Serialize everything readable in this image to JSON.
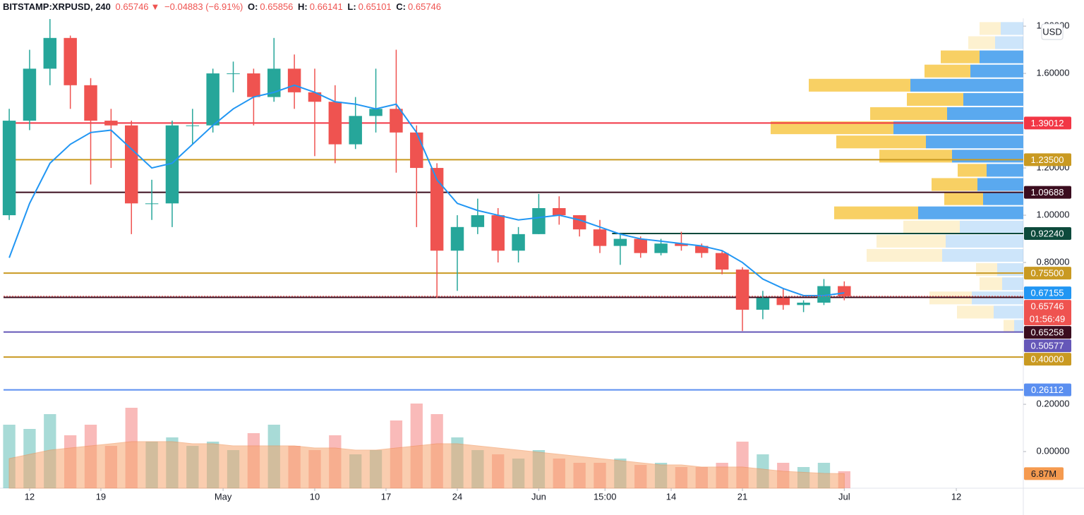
{
  "header": {
    "symbol": "BITSTAMP:XRPUSD, 240",
    "last": "0.65746",
    "arrow": "▼",
    "change": "−0.04883 (−6.91%)",
    "open_label": "O:",
    "open": "0.65856",
    "high_label": "H:",
    "high": "0.66141",
    "low_label": "L:",
    "low": "0.65101",
    "close_label": "C:",
    "close": "0.65746"
  },
  "chart_data": {
    "type": "candlestick",
    "currency": "USD",
    "grid": false,
    "up_color": "#26a69a",
    "down_color": "#ef5350",
    "xlim": [
      -0.28,
      49.79
    ],
    "xticks": [
      {
        "value": 1,
        "label": "12"
      },
      {
        "value": 4.5,
        "label": "19"
      },
      {
        "value": 10.5,
        "label": "May"
      },
      {
        "value": 15,
        "label": "10"
      },
      {
        "value": 18.5,
        "label": "17"
      },
      {
        "value": 22,
        "label": "24"
      },
      {
        "value": 26,
        "label": "Jun"
      },
      {
        "value": 29.25,
        "label": "15:00"
      },
      {
        "value": 32.5,
        "label": "14"
      },
      {
        "value": 36,
        "label": "21"
      },
      {
        "value": 41,
        "label": "Jul"
      },
      {
        "value": 46.5,
        "label": "12"
      }
    ],
    "ylim": [
      -0.155,
      1.833
    ],
    "yticks": [
      {
        "value": 0,
        "label": "0.00000"
      },
      {
        "value": 0.2,
        "label": "0.20000"
      },
      {
        "value": 0.8,
        "label": "0.80000"
      },
      {
        "value": 1,
        "label": "1.00000"
      },
      {
        "value": 1.2,
        "label": "1.20000"
      },
      {
        "value": 1.6,
        "label": "1.60000"
      },
      {
        "value": 1.8,
        "label": "1.80000"
      }
    ],
    "open": [
      1.0,
      1.4,
      1.62,
      1.75,
      1.55,
      1.4,
      1.38,
      1.05,
      1.05,
      1.38,
      1.38,
      1.6,
      1.6,
      1.5,
      1.62,
      1.52,
      1.48,
      1.3,
      1.42,
      1.45,
      1.35,
      1.2,
      0.85,
      0.95,
      1.0,
      0.85,
      0.92,
      1.03,
      1.0,
      0.94,
      0.87,
      0.9,
      0.84,
      0.88,
      0.87,
      0.84,
      0.77,
      0.6,
      0.65,
      0.62,
      0.63,
      0.7
    ],
    "high": [
      1.45,
      1.7,
      1.83,
      1.76,
      1.58,
      1.45,
      1.4,
      1.15,
      1.4,
      1.45,
      1.62,
      1.65,
      1.62,
      1.75,
      1.68,
      1.62,
      1.55,
      1.5,
      1.62,
      1.7,
      1.38,
      1.22,
      1.0,
      1.07,
      1.03,
      0.95,
      1.09,
      1.08,
      1.0,
      0.98,
      0.92,
      0.91,
      0.9,
      0.93,
      0.88,
      0.85,
      0.78,
      0.68,
      0.69,
      0.64,
      0.73,
      0.72
    ],
    "low": [
      0.98,
      1.36,
      1.55,
      1.45,
      1.13,
      1.2,
      0.92,
      0.98,
      0.95,
      1.3,
      1.35,
      1.52,
      1.38,
      1.48,
      1.45,
      1.25,
      1.22,
      1.28,
      1.35,
      1.18,
      0.95,
      0.65,
      0.68,
      0.92,
      0.8,
      0.8,
      0.92,
      0.96,
      0.91,
      0.84,
      0.79,
      0.82,
      0.83,
      0.85,
      0.82,
      0.75,
      0.51,
      0.56,
      0.6,
      0.59,
      0.62,
      0.64
    ],
    "close": [
      1.4,
      1.62,
      1.75,
      1.55,
      1.4,
      1.38,
      1.05,
      1.05,
      1.38,
      1.38,
      1.6,
      1.6,
      1.5,
      1.62,
      1.52,
      1.48,
      1.3,
      1.42,
      1.45,
      1.35,
      1.2,
      0.85,
      0.95,
      1.0,
      0.85,
      0.92,
      1.03,
      1.0,
      0.94,
      0.87,
      0.9,
      0.84,
      0.88,
      0.87,
      0.84,
      0.77,
      0.6,
      0.65,
      0.62,
      0.63,
      0.7,
      0.65746
    ],
    "countdown": "01:56:49",
    "last_color": "#ef5350",
    "ma": {
      "color": "#2196f3",
      "values": [
        0.82,
        1.05,
        1.22,
        1.3,
        1.35,
        1.36,
        1.28,
        1.2,
        1.22,
        1.3,
        1.38,
        1.45,
        1.5,
        1.52,
        1.55,
        1.52,
        1.48,
        1.47,
        1.45,
        1.47,
        1.35,
        1.15,
        1.05,
        1.02,
        1.0,
        0.98,
        0.99,
        1.0,
        0.98,
        0.95,
        0.92,
        0.9,
        0.89,
        0.88,
        0.87,
        0.85,
        0.8,
        0.73,
        0.69,
        0.66,
        0.66,
        0.67155
      ]
    },
    "levels": [
      {
        "value": 1.39012,
        "color": "#f23645"
      },
      {
        "value": 1.235,
        "label": "1.23500",
        "color": "#c99a22"
      },
      {
        "value": 1.09688,
        "color": "#3b0d1f"
      },
      {
        "value": 0.9224,
        "label": "0.92240",
        "color": "#0d4a3c",
        "x_start": 29.6
      },
      {
        "value": 0.755,
        "label": "0.75500",
        "color": "#c99a22"
      },
      {
        "value": 0.65258,
        "color": "#3b0d1f"
      },
      {
        "value": 0.50577,
        "color": "#6557b8"
      },
      {
        "value": 0.4,
        "label": "0.40000",
        "color": "#c99a22"
      },
      {
        "value": 0.26112,
        "color": "#5b8ff0"
      }
    ],
    "volume": {
      "vlim": [
        0,
        60000000
      ],
      "ma_color": "#f6a56e",
      "ma_label": "6.87M",
      "values": [
        30000000,
        28000000,
        35000000,
        25000000,
        30000000,
        20000000,
        38000000,
        22000000,
        24000000,
        20000000,
        22000000,
        18000000,
        26000000,
        30000000,
        20000000,
        18000000,
        25000000,
        16000000,
        18000000,
        32000000,
        40000000,
        35000000,
        24000000,
        18000000,
        16000000,
        14000000,
        18000000,
        14000000,
        12000000,
        12000000,
        14000000,
        11000000,
        12000000,
        10000000,
        10000000,
        12000000,
        22000000,
        16000000,
        12000000,
        10000000,
        12000000,
        8000000
      ],
      "ma": [
        14000000,
        16000000,
        18000000,
        19000000,
        20000000,
        21000000,
        22000000,
        22000000,
        22000000,
        21000000,
        21000000,
        20000000,
        20000000,
        20000000,
        20000000,
        19000000,
        19000000,
        18000000,
        18000000,
        19000000,
        20000000,
        21000000,
        21000000,
        20000000,
        19000000,
        18000000,
        17000000,
        16000000,
        15000000,
        14000000,
        13000000,
        12000000,
        11000000,
        11000000,
        10000000,
        10000000,
        10000000,
        9000000,
        8000000,
        7500000,
        7000000,
        6870000
      ]
    },
    "volume_profile": {
      "up_color": "#5aa9ef",
      "down_color": "#f8d064",
      "value_area": [
        0.98,
        1.7
      ],
      "bins": [
        0.5,
        0.56,
        0.62,
        0.68,
        0.74,
        0.8,
        0.86,
        0.92,
        0.98,
        1.04,
        1.1,
        1.16,
        1.22,
        1.28,
        1.34,
        1.4,
        1.46,
        1.52,
        1.58,
        1.64,
        1.7,
        1.76,
        1.82
      ],
      "up": [
        13,
        42,
        73,
        30,
        37,
        115,
        110,
        90,
        149,
        57,
        65,
        52,
        101,
        138,
        184,
        108,
        85,
        160,
        75,
        62,
        40,
        32
      ],
      "down": [
        15,
        52,
        60,
        32,
        30,
        107,
        98,
        80,
        119,
        55,
        65,
        41,
        103,
        127,
        174,
        109,
        80,
        144,
        65,
        55,
        38,
        30
      ]
    }
  }
}
